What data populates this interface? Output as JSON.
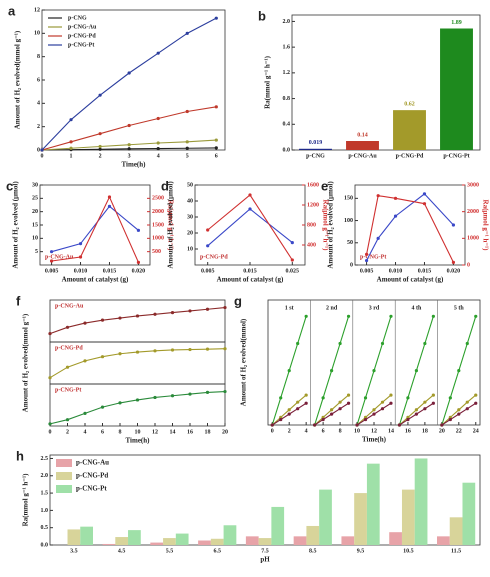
{
  "chart_data": [
    {
      "type": "line",
      "panel": "a",
      "xlabel": "Time(h)",
      "ylabel": "Amount of H₂ evolved(mmol g⁻¹)",
      "x": [
        0,
        1,
        2,
        3,
        4,
        5,
        6
      ],
      "xlim": [
        0,
        6.3
      ],
      "xticks": [
        0,
        1,
        2,
        3,
        4,
        5,
        6
      ],
      "ylim": [
        0,
        12
      ],
      "yticks": [
        0,
        2,
        4,
        6,
        8,
        10,
        12
      ],
      "legend": "upper left",
      "markers": true,
      "series": [
        {
          "name": "p-CNG",
          "color": "#222222",
          "values": [
            0,
            0.03,
            0.06,
            0.1,
            0.12,
            0.15,
            0.18
          ]
        },
        {
          "name": "p-CNG-Au",
          "color": "#9a9a3a",
          "values": [
            0,
            0.15,
            0.3,
            0.45,
            0.6,
            0.7,
            0.85
          ]
        },
        {
          "name": "p-CNG-Pd",
          "color": "#c0392b",
          "values": [
            0,
            0.7,
            1.4,
            2.1,
            2.7,
            3.3,
            3.7
          ]
        },
        {
          "name": "p-CNG-Pt",
          "color": "#2c3e9e",
          "values": [
            0,
            2.6,
            4.7,
            6.6,
            8.3,
            10.0,
            11.3
          ]
        }
      ]
    },
    {
      "type": "bar",
      "panel": "b",
      "ylabel": "Ra(mmol g⁻¹ h⁻¹)",
      "categories": [
        "p-CNG",
        "p-CNG-Au",
        "p-CNG-Pd",
        "p-CNG-Pt"
      ],
      "values": [
        0.019,
        0.14,
        0.62,
        1.89
      ],
      "colors": [
        "#1f2a8a",
        "#c0392b",
        "#a39a2a",
        "#1e8a1e"
      ],
      "data_labels": true,
      "ylim": [
        0,
        2.1
      ],
      "yticks": [
        {
          "value": 0,
          "label": "0.0"
        },
        0.4,
        0.8,
        1.2,
        1.6,
        {
          "value": 2,
          "label": "2.0"
        }
      ]
    },
    {
      "type": "line",
      "panel": "c",
      "xlabel": "Amount of catalyst (g)",
      "ylabel": "Amount of H₂ evolved (μmol)",
      "y2label": "Ra(μmol g⁻¹ h⁻¹)",
      "annotation": "p-CNG-Au",
      "x": [
        0.005,
        0.01,
        0.015,
        0.02
      ],
      "xlim": [
        0.003,
        0.022
      ],
      "xticks": [
        0.005,
        {
          "value": 0.01,
          "label": "0.010"
        },
        0.015,
        {
          "value": 0.02,
          "label": "0.020"
        }
      ],
      "ylim": [
        0,
        30
      ],
      "yticks": [
        5,
        10,
        15,
        20,
        25,
        30
      ],
      "y2lim": [
        0,
        3000
      ],
      "y2ticks": [
        500,
        1000,
        1500,
        2000,
        2500
      ],
      "markers": true,
      "series": [
        {
          "color": "#3a48c8",
          "values": [
            5,
            8,
            22,
            13
          ]
        },
        {
          "color": "#d03030",
          "axis": "y2",
          "values": [
            150,
            300,
            2550,
            100
          ]
        }
      ]
    },
    {
      "type": "line",
      "panel": "d",
      "xlabel": "Amount of catalyst (g)",
      "ylabel": "Amount of H₂ evolved (μmol)",
      "y2label": "Ra(μmol g⁻¹ h⁻¹)",
      "annotation": "p-CNG-Pd",
      "x": [
        0.005,
        0.015,
        0.025
      ],
      "xlim": [
        0.002,
        0.028
      ],
      "xticks": [
        0.005,
        0.015,
        0.025
      ],
      "ylim": [
        0,
        50
      ],
      "yticks": [
        10,
        20,
        30,
        40,
        50
      ],
      "y2lim": [
        0,
        1600
      ],
      "y2ticks": [
        400,
        800,
        1200,
        1600
      ],
      "markers": true,
      "series": [
        {
          "color": "#3a48c8",
          "values": [
            12,
            35,
            14
          ]
        },
        {
          "color": "#d03030",
          "axis": "y2",
          "values": [
            700,
            1400,
            100
          ]
        }
      ]
    },
    {
      "type": "line",
      "panel": "e",
      "xlabel": "Amount of catalyst (g)",
      "ylabel": "Amount of H₂ evolved (μmol)",
      "y2label": "Ra(μmol g⁻¹ h⁻¹)",
      "annotation": "p-CNG-Pt",
      "x": [
        0.005,
        0.007,
        0.01,
        0.015,
        0.02
      ],
      "xlim": [
        0.003,
        0.022
      ],
      "xticks": [
        0.005,
        {
          "value": 0.01,
          "label": "0.010"
        },
        0.015,
        {
          "value": 0.02,
          "label": "0.020"
        }
      ],
      "ylim": [
        0,
        180
      ],
      "yticks": [
        0,
        50,
        100,
        150
      ],
      "y2lim": [
        0,
        3000
      ],
      "y2ticks": [
        0,
        1000,
        2000,
        3000
      ],
      "markers": true,
      "series": [
        {
          "color": "#3a48c8",
          "values": [
            10,
            60,
            110,
            160,
            90
          ]
        },
        {
          "color": "#d03030",
          "axis": "y2",
          "values": [
            400,
            2600,
            2500,
            2300,
            100
          ]
        }
      ]
    },
    {
      "type": "line",
      "panel": "f",
      "annotation": "p-CNG-Au",
      "x": [
        0,
        2,
        4,
        6,
        8,
        10,
        12,
        14,
        16,
        18,
        20
      ],
      "xlim": [
        0,
        20
      ],
      "ylim": [
        0,
        1
      ],
      "markers": true,
      "series": [
        {
          "color": "#8b2a2a",
          "values": [
            0.2,
            0.35,
            0.45,
            0.52,
            0.57,
            0.62,
            0.66,
            0.7,
            0.74,
            0.78,
            0.82
          ]
        }
      ]
    },
    {
      "type": "line",
      "annotation": "p-CNG-Pd",
      "ylabel": "Amount of H₂ evolved(mmol g⁻¹)",
      "x": [
        0,
        2,
        4,
        6,
        8,
        10,
        12,
        14,
        16,
        18,
        20
      ],
      "xlim": [
        0,
        20
      ],
      "ylim": [
        0,
        1
      ],
      "markers": true,
      "series": [
        {
          "color": "#a39a2a",
          "values": [
            0.15,
            0.4,
            0.55,
            0.65,
            0.72,
            0.76,
            0.79,
            0.81,
            0.82,
            0.83,
            0.84
          ]
        }
      ]
    },
    {
      "type": "line",
      "annotation": "p-CNG-Pt",
      "xlabel": "Time(h)",
      "x": [
        0,
        2,
        4,
        6,
        8,
        10,
        12,
        14,
        16,
        18,
        20
      ],
      "xlim": [
        0,
        20
      ],
      "xticks": [
        0,
        2,
        4,
        6,
        8,
        10,
        12,
        14,
        16,
        18,
        20
      ],
      "ylim": [
        0,
        1
      ],
      "markers": true,
      "series": [
        {
          "color": "#2a8a3a",
          "values": [
            0.05,
            0.15,
            0.3,
            0.45,
            0.55,
            0.62,
            0.68,
            0.72,
            0.76,
            0.8,
            0.82
          ]
        }
      ]
    },
    {
      "type": "line",
      "panel": "g",
      "xlabel": "Time(h)",
      "ylabel": "Amount of H₂ evolved(mmol)",
      "cycle_labels": [
        "1 st",
        "2 nd",
        "3 rd",
        "4 th",
        "5 th"
      ],
      "x": [
        0,
        1,
        2,
        3,
        4,
        4.5,
        5,
        6,
        7,
        8,
        9,
        9.5,
        10,
        11,
        12,
        13,
        14,
        14.5,
        15,
        16,
        17,
        18,
        19,
        19.5,
        20,
        21,
        22,
        23,
        24
      ],
      "xlim": [
        -0.5,
        24.5
      ],
      "xticks": [
        0,
        2,
        4,
        6,
        8,
        10,
        12,
        14,
        16,
        18,
        20,
        22,
        24
      ],
      "ylim": [
        0,
        2.3
      ],
      "markers": true,
      "series": [
        {
          "color": "#2ca02c",
          "values": [
            0,
            0.5,
            1,
            1.5,
            2,
            null,
            0,
            0.5,
            1,
            1.5,
            2,
            null,
            0,
            0.5,
            1,
            1.5,
            2,
            null,
            0,
            0.5,
            1,
            1.5,
            2,
            null,
            0,
            0.5,
            1,
            1.5,
            2
          ]
        },
        {
          "color": "#a39a2a",
          "values": [
            0,
            0.14,
            0.28,
            0.42,
            0.55,
            null,
            0,
            0.14,
            0.28,
            0.42,
            0.55,
            null,
            0,
            0.14,
            0.28,
            0.42,
            0.55,
            null,
            0,
            0.14,
            0.28,
            0.42,
            0.55,
            null,
            0,
            0.14,
            0.28,
            0.42,
            0.55
          ]
        },
        {
          "color": "#7a1f3a",
          "values": [
            0,
            0.1,
            0.2,
            0.3,
            0.4,
            null,
            0,
            0.1,
            0.2,
            0.3,
            0.4,
            null,
            0,
            0.1,
            0.2,
            0.3,
            0.4,
            null,
            0,
            0.1,
            0.2,
            0.3,
            0.4,
            null,
            0,
            0.1,
            0.2,
            0.3,
            0.4
          ]
        }
      ]
    },
    {
      "type": "bar",
      "panel": "h",
      "xlabel": "pH",
      "ylabel": "Ra(mmol g⁻¹ h⁻¹)",
      "legend": "upper left",
      "categories": [
        "3.5",
        "4.5",
        "5.5",
        "6.5",
        "7.5",
        "8.5",
        "9.5",
        "10.5",
        "11.5"
      ],
      "ylim": [
        0,
        2.6
      ],
      "yticks": [
        {
          "value": 0,
          "label": "0.0"
        },
        0.5,
        {
          "value": 1,
          "label": "1.0"
        },
        1.5,
        {
          "value": 2,
          "label": "2.0"
        },
        2.5
      ],
      "series": [
        {
          "name": "p-CNG-Au",
          "color": "#e7a3a8",
          "values": [
            0,
            0.03,
            0.07,
            0.13,
            0.25,
            0.25,
            0.25,
            0.37,
            0.25
          ]
        },
        {
          "name": "p-CNG-Pd",
          "color": "#d8d49a",
          "values": [
            0.45,
            0.23,
            0.2,
            0.18,
            0.2,
            0.55,
            1.5,
            1.6,
            0.8
          ]
        },
        {
          "name": "p-CNG-Pt",
          "color": "#9fe0a8",
          "values": [
            0.53,
            0.43,
            0.33,
            0.57,
            1.1,
            1.6,
            2.35,
            2.5,
            1.8
          ]
        }
      ]
    }
  ]
}
